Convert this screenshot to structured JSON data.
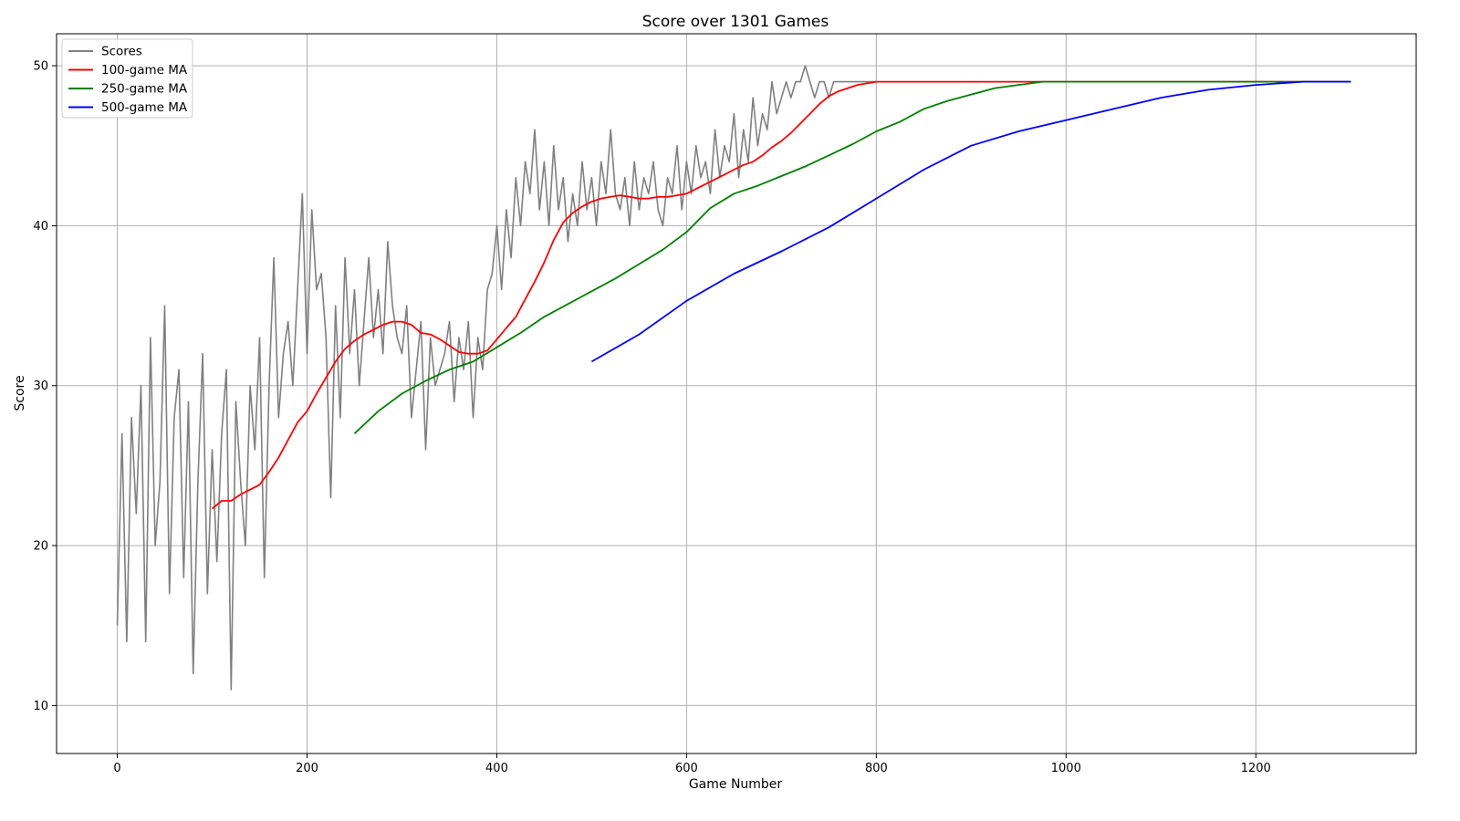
{
  "chart_data": {
    "type": "line",
    "title": "Score over 1301 Games",
    "xlabel": "Game Number",
    "ylabel": "Score",
    "xlim": [
      -64,
      1369
    ],
    "ylim": [
      7.0,
      52.0
    ],
    "xticks": [
      0,
      200,
      400,
      600,
      800,
      1000,
      1200
    ],
    "yticks": [
      10,
      20,
      30,
      40,
      50
    ],
    "grid": true,
    "legend_position": "top-left",
    "raw_scores_color": "#808080",
    "series": [
      {
        "name": "Scores",
        "color": "#808080",
        "x": [
          0,
          5,
          10,
          15,
          20,
          25,
          30,
          35,
          40,
          45,
          50,
          55,
          60,
          65,
          70,
          75,
          80,
          85,
          90,
          95,
          100,
          105,
          110,
          115,
          120,
          125,
          130,
          135,
          140,
          145,
          150,
          155,
          160,
          165,
          170,
          175,
          180,
          185,
          190,
          195,
          200,
          205,
          210,
          215,
          220,
          225,
          230,
          235,
          240,
          245,
          250,
          255,
          260,
          265,
          270,
          275,
          280,
          285,
          290,
          295,
          300,
          305,
          310,
          315,
          320,
          325,
          330,
          335,
          340,
          345,
          350,
          355,
          360,
          365,
          370,
          375,
          380,
          385,
          390,
          395,
          400,
          405,
          410,
          415,
          420,
          425,
          430,
          435,
          440,
          445,
          450,
          455,
          460,
          465,
          470,
          475,
          480,
          485,
          490,
          495,
          500,
          505,
          510,
          515,
          520,
          525,
          530,
          535,
          540,
          545,
          550,
          555,
          560,
          565,
          570,
          575,
          580,
          585,
          590,
          595,
          600,
          605,
          610,
          615,
          620,
          625,
          630,
          635,
          640,
          645,
          650,
          655,
          660,
          665,
          670,
          675,
          680,
          685,
          690,
          695,
          700,
          705,
          710,
          715,
          720,
          725,
          730,
          735,
          740,
          745,
          750,
          755,
          760,
          765,
          770,
          775,
          780,
          785,
          790,
          795,
          800
        ],
        "values": [
          15,
          27,
          14,
          28,
          22,
          30,
          14,
          33,
          20,
          24,
          35,
          17,
          28,
          31,
          18,
          29,
          12,
          24,
          32,
          17,
          26,
          19,
          27,
          31,
          11,
          29,
          24,
          20,
          30,
          26,
          33,
          18,
          30,
          38,
          28,
          32,
          34,
          30,
          36,
          42,
          32,
          41,
          36,
          37,
          33,
          23,
          35,
          28,
          38,
          32,
          36,
          30,
          34,
          38,
          33,
          36,
          32,
          39,
          35,
          33,
          32,
          35,
          28,
          31,
          34,
          26,
          33,
          30,
          31,
          32,
          34,
          29,
          33,
          31,
          34,
          28,
          33,
          31,
          36,
          37,
          40,
          36,
          41,
          38,
          43,
          40,
          44,
          42,
          46,
          41,
          44,
          40,
          45,
          41,
          43,
          39,
          42,
          40,
          44,
          41,
          43,
          40,
          44,
          42,
          46,
          42,
          41,
          43,
          40,
          44,
          41,
          43,
          42,
          44,
          41,
          40,
          43,
          42,
          45,
          41,
          44,
          42,
          45,
          43,
          44,
          42,
          46,
          43,
          45,
          44,
          47,
          43,
          46,
          44,
          48,
          45,
          47,
          46,
          49,
          47,
          48,
          49,
          48,
          49,
          49,
          50,
          49,
          48,
          49,
          49,
          48,
          49,
          49,
          49,
          49,
          49,
          49,
          49,
          49,
          49,
          49
        ]
      },
      {
        "name": "100-game MA",
        "color": "#ff0000",
        "x": [
          100,
          110,
          120,
          130,
          140,
          150,
          160,
          170,
          180,
          190,
          200,
          210,
          220,
          230,
          240,
          250,
          260,
          270,
          280,
          290,
          300,
          310,
          320,
          330,
          340,
          350,
          360,
          370,
          380,
          390,
          400,
          410,
          420,
          430,
          440,
          450,
          460,
          470,
          480,
          490,
          500,
          510,
          520,
          530,
          540,
          550,
          560,
          570,
          580,
          590,
          600,
          610,
          620,
          630,
          640,
          650,
          660,
          670,
          680,
          690,
          700,
          710,
          720,
          730,
          740,
          750,
          760,
          770,
          780,
          790,
          800,
          810,
          820,
          830,
          850,
          900,
          1000,
          1100,
          1200,
          1300
        ],
        "values": [
          22.3,
          22.8,
          22.8,
          23.2,
          23.5,
          23.8,
          24.6,
          25.5,
          26.6,
          27.7,
          28.4,
          29.5,
          30.5,
          31.5,
          32.3,
          32.8,
          33.2,
          33.5,
          33.8,
          34.0,
          34.0,
          33.8,
          33.3,
          33.2,
          32.9,
          32.5,
          32.1,
          32.0,
          32.0,
          32.2,
          32.9,
          33.6,
          34.3,
          35.4,
          36.5,
          37.7,
          39.1,
          40.2,
          40.8,
          41.2,
          41.5,
          41.7,
          41.8,
          41.9,
          41.8,
          41.7,
          41.7,
          41.8,
          41.8,
          41.9,
          42.0,
          42.3,
          42.6,
          42.9,
          43.2,
          43.5,
          43.8,
          44.0,
          44.4,
          44.9,
          45.3,
          45.8,
          46.4,
          47.0,
          47.6,
          48.1,
          48.4,
          48.6,
          48.8,
          48.9,
          49.0,
          49.0,
          49.0,
          49.0,
          49.0,
          49.0,
          49.0,
          49.0,
          49.0,
          49.0
        ]
      },
      {
        "name": "250-game MA",
        "color": "#008000",
        "x": [
          250,
          275,
          300,
          325,
          350,
          375,
          400,
          425,
          450,
          475,
          500,
          525,
          550,
          575,
          600,
          625,
          650,
          675,
          700,
          725,
          750,
          775,
          800,
          825,
          850,
          875,
          900,
          925,
          950,
          975,
          1000,
          1100,
          1200,
          1300
        ],
        "values": [
          27.0,
          28.4,
          29.5,
          30.3,
          31.0,
          31.5,
          32.4,
          33.3,
          34.3,
          35.1,
          35.9,
          36.7,
          37.6,
          38.5,
          39.6,
          41.1,
          42.0,
          42.5,
          43.1,
          43.7,
          44.4,
          45.1,
          45.9,
          46.5,
          47.3,
          47.8,
          48.2,
          48.6,
          48.8,
          49.0,
          49.0,
          49.0,
          49.0,
          49.0
        ]
      },
      {
        "name": "500-game MA",
        "color": "#0000ff",
        "x": [
          500,
          550,
          600,
          650,
          700,
          750,
          800,
          850,
          900,
          950,
          1000,
          1050,
          1100,
          1150,
          1200,
          1250,
          1300
        ],
        "values": [
          31.5,
          33.2,
          35.3,
          37.0,
          38.4,
          39.9,
          41.7,
          43.5,
          45.0,
          45.9,
          46.6,
          47.3,
          48.0,
          48.5,
          48.8,
          49.0,
          49.0
        ]
      }
    ]
  }
}
